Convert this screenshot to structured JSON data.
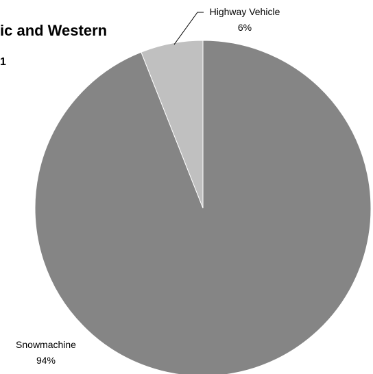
{
  "chart_data": {
    "type": "pie",
    "title": "ic and Western",
    "subtitle": "1",
    "categories": [
      "Highway Vehicle",
      "Snowmachine"
    ],
    "values": [
      6,
      94
    ],
    "value_labels": [
      "6%",
      "94%"
    ],
    "colors": [
      "#c0c0c0",
      "#858585"
    ],
    "legend": "none"
  }
}
